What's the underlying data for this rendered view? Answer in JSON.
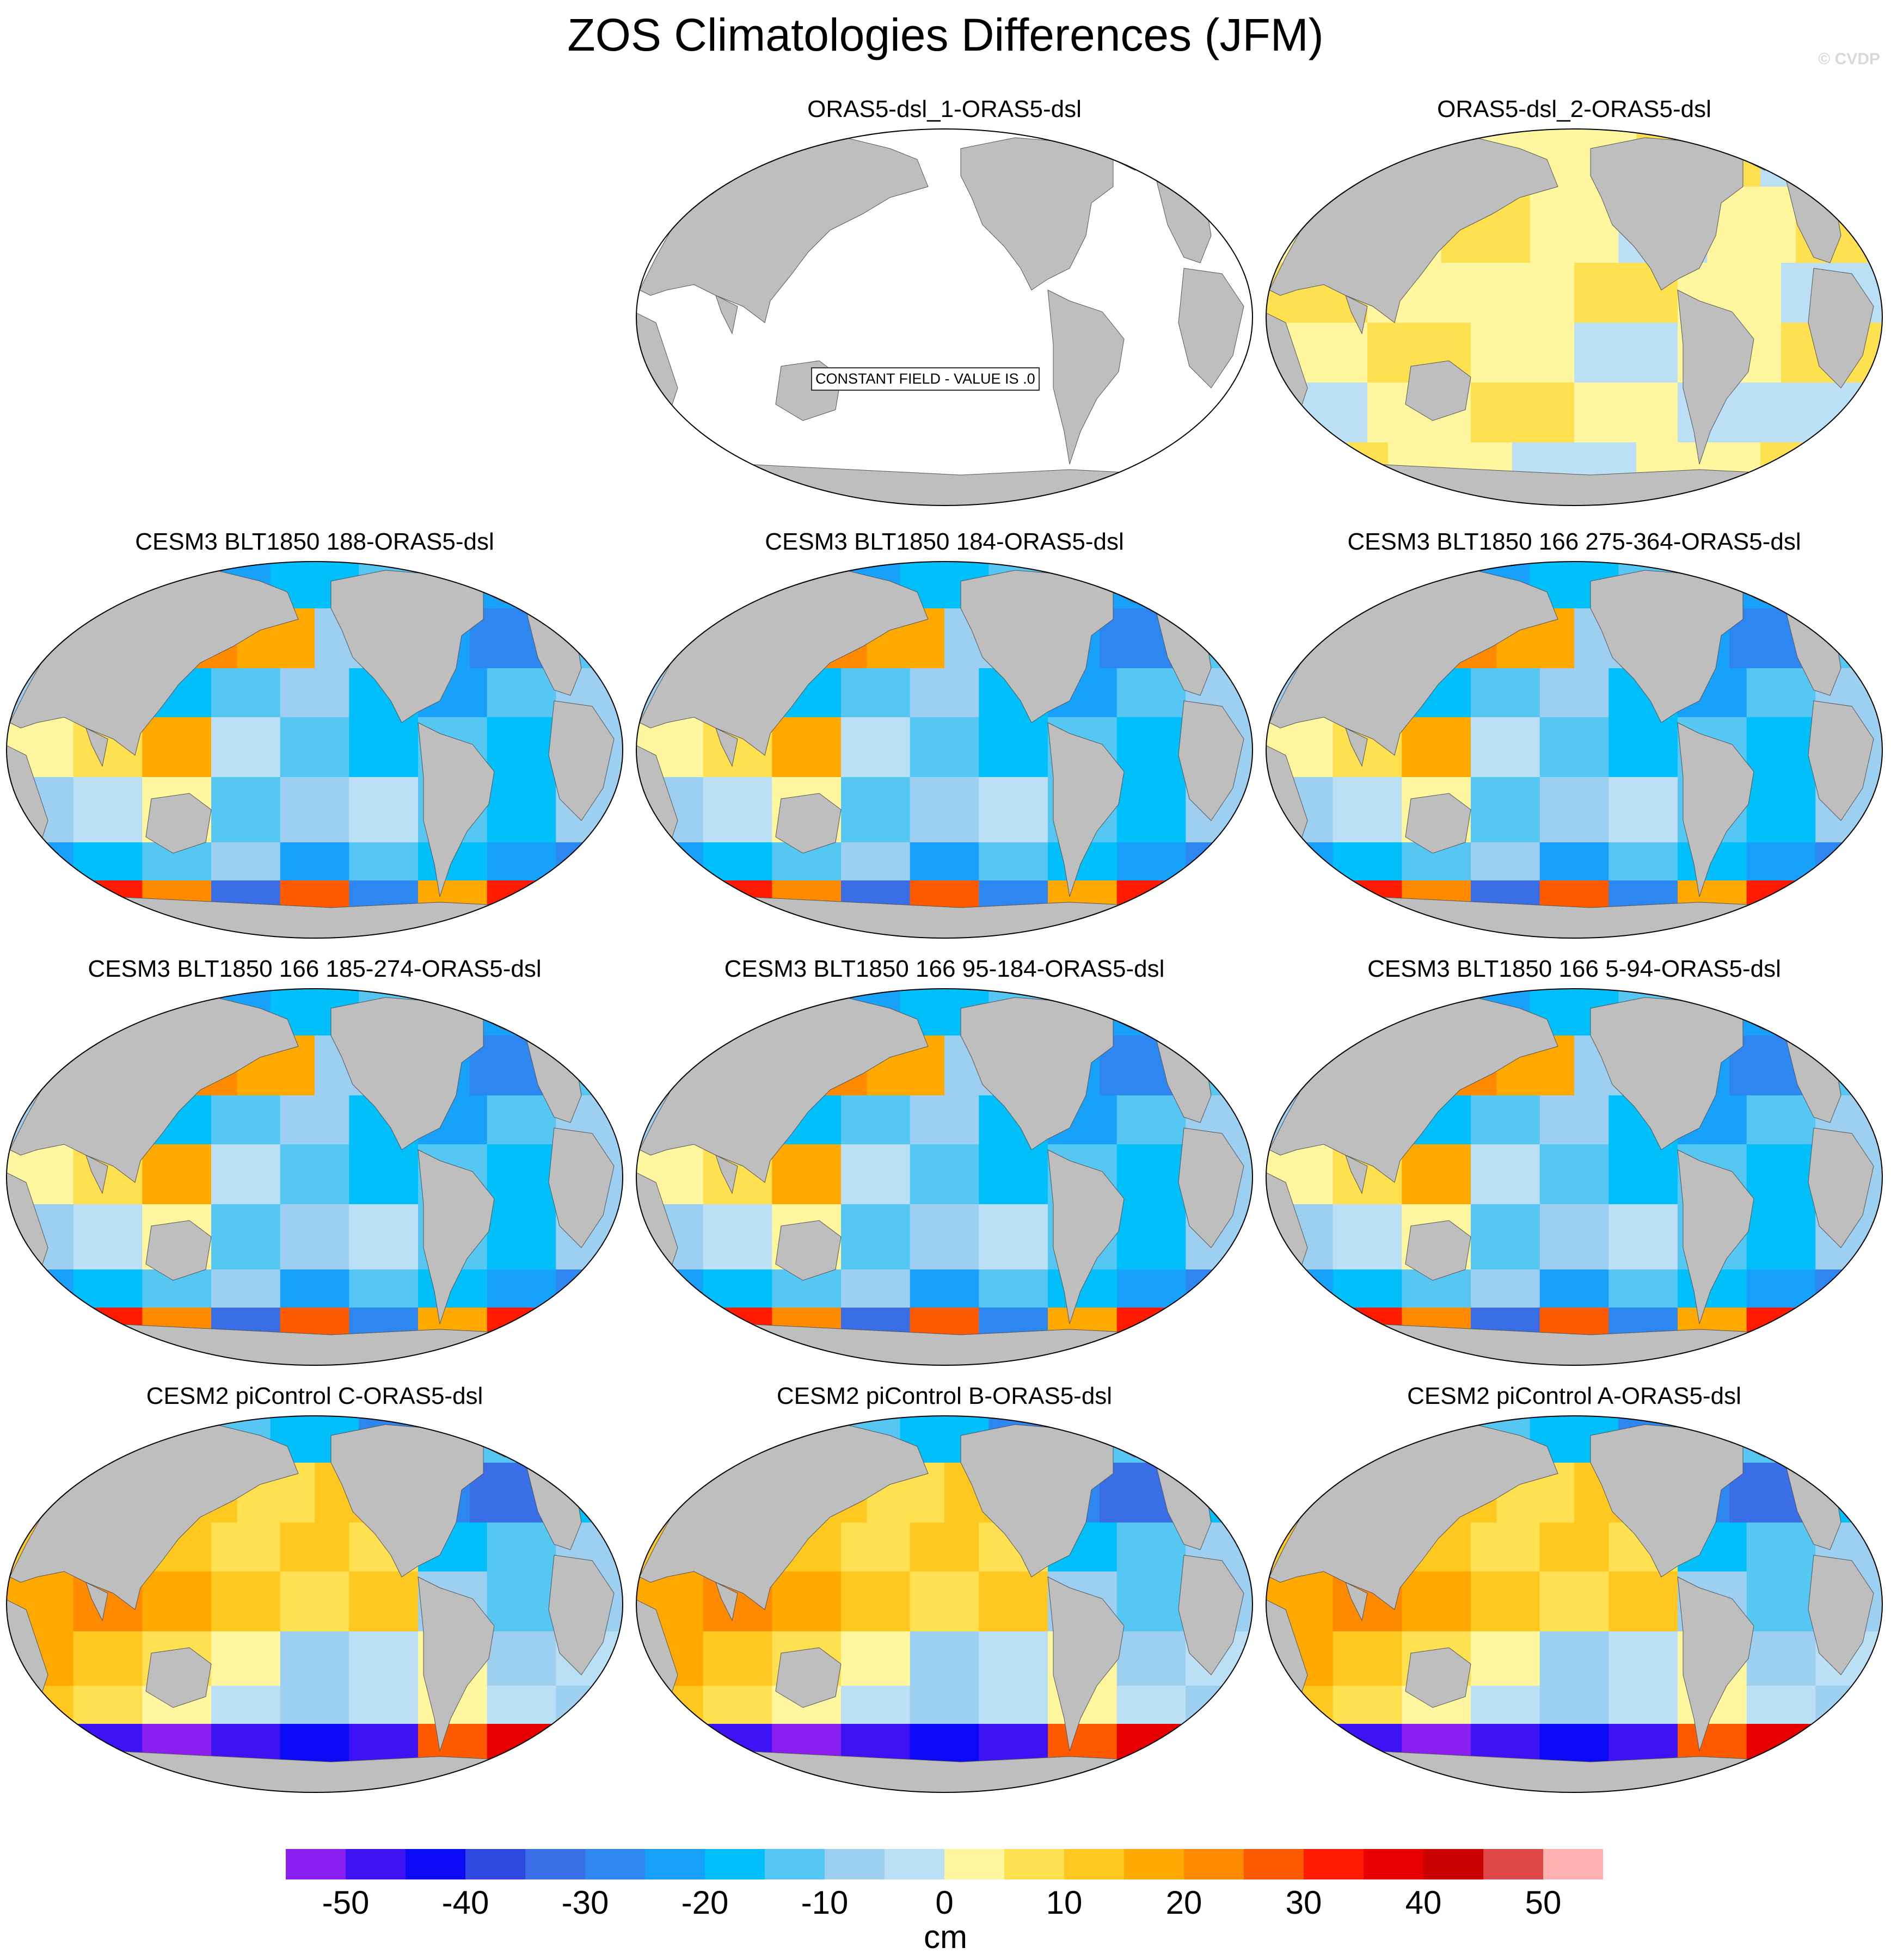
{
  "title": "ZOS Climatologies Differences (JFM)",
  "watermark": "© CVDP",
  "panels": [
    {
      "title": "ORAS5-dsl_1-ORAS5-dsl",
      "pattern": "constant",
      "note": "CONSTANT FIELD - VALUE IS .0"
    },
    {
      "title": "ORAS5-dsl_2-ORAS5-dsl",
      "pattern": "small"
    },
    {
      "title": "CESM3 BLT1850 188-ORAS5-dsl",
      "pattern": "cesm3"
    },
    {
      "title": "CESM3 BLT1850 184-ORAS5-dsl",
      "pattern": "cesm3"
    },
    {
      "title": "CESM3 BLT1850 166 275-364-ORAS5-dsl",
      "pattern": "cesm3"
    },
    {
      "title": "CESM3 BLT1850 166 185-274-ORAS5-dsl",
      "pattern": "cesm3"
    },
    {
      "title": "CESM3 BLT1850 166 95-184-ORAS5-dsl",
      "pattern": "cesm3"
    },
    {
      "title": "CESM3 BLT1850 166 5-94-ORAS5-dsl",
      "pattern": "cesm3"
    },
    {
      "title": "CESM2 piControl C-ORAS5-dsl",
      "pattern": "cesm2"
    },
    {
      "title": "CESM2 piControl B-ORAS5-dsl",
      "pattern": "cesm2"
    },
    {
      "title": "CESM2 piControl A-ORAS5-dsl",
      "pattern": "cesm2"
    }
  ],
  "colorbar": {
    "units": "cm",
    "colors": [
      "#8a1ff0",
      "#3d12f5",
      "#0a0af5",
      "#2f49e0",
      "#3a6ee6",
      "#2e86f0",
      "#18a1fb",
      "#00bffb",
      "#56c6f2",
      "#9ccff0",
      "#bbe0f5",
      "#fff7a0",
      "#ffe050",
      "#ffc820",
      "#ffa800",
      "#ff8a00",
      "#ff5a00",
      "#ff1a00",
      "#e80000",
      "#c80000",
      "#dc4646",
      "#ffb0b0"
    ],
    "ticks": [
      "-50",
      "-40",
      "-30",
      "-20",
      "-10",
      "0",
      "10",
      "20",
      "30",
      "40",
      "50"
    ]
  }
}
